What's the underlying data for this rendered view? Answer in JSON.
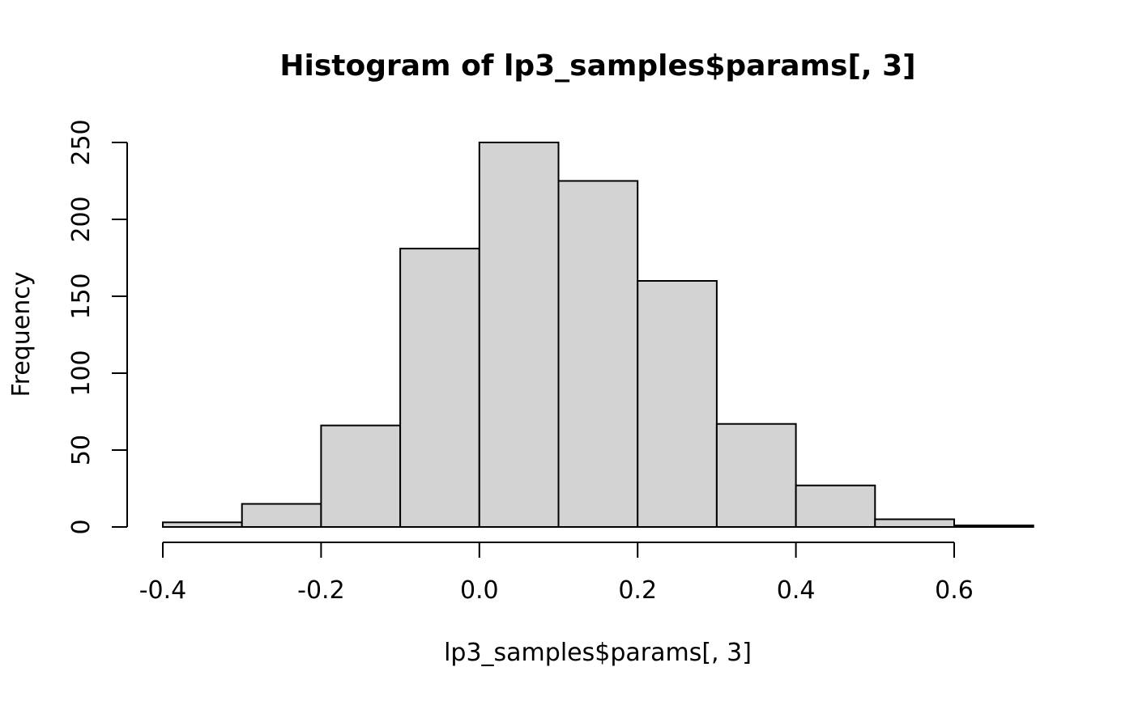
{
  "chart_data": {
    "type": "bar",
    "title": "Histogram of lp3_samples$params[, 3]",
    "xlabel": "lp3_samples$params[, 3]",
    "ylabel": "Frequency",
    "bins": [
      {
        "x0": -0.4,
        "x1": -0.3,
        "count": 3
      },
      {
        "x0": -0.3,
        "x1": -0.2,
        "count": 15
      },
      {
        "x0": -0.2,
        "x1": -0.1,
        "count": 66
      },
      {
        "x0": -0.1,
        "x1": 0.0,
        "count": 181
      },
      {
        "x0": 0.0,
        "x1": 0.1,
        "count": 250
      },
      {
        "x0": 0.1,
        "x1": 0.2,
        "count": 225
      },
      {
        "x0": 0.2,
        "x1": 0.3,
        "count": 160
      },
      {
        "x0": 0.3,
        "x1": 0.4,
        "count": 67
      },
      {
        "x0": 0.4,
        "x1": 0.5,
        "count": 27
      },
      {
        "x0": 0.5,
        "x1": 0.6,
        "count": 5
      },
      {
        "x0": 0.6,
        "x1": 0.7,
        "count": 1
      }
    ],
    "x_ticks": [
      -0.4,
      -0.2,
      0.0,
      0.2,
      0.4,
      0.6
    ],
    "x_tick_labels": [
      "-0.4",
      "-0.2",
      "0.0",
      "0.2",
      "0.4",
      "0.6"
    ],
    "y_ticks": [
      0,
      50,
      100,
      150,
      200,
      250
    ],
    "y_tick_labels": [
      "0",
      "50",
      "100",
      "150",
      "200",
      "250"
    ],
    "xlim": [
      -0.4,
      0.6
    ],
    "ylim": [
      0,
      250
    ],
    "grid": false,
    "colors": {
      "bar_fill": "#d3d3d3",
      "bar_stroke": "#000000"
    }
  }
}
